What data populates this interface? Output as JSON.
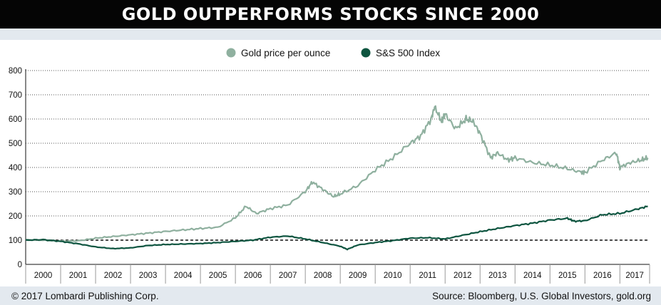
{
  "title": "GOLD OUTPERFORMS STOCKS SINCE 2000",
  "footer": {
    "left": "© 2017 Lombardi Publishing Corp.",
    "right": "Source: Bloomberg, U.S. Global Investors, gold.org"
  },
  "colors": {
    "gold": "#8fb09f",
    "sp": "#0e5540",
    "baseline": "#111111",
    "grid": "#555555"
  },
  "chart_data": {
    "type": "line",
    "legend_position": "top-center",
    "grid": true,
    "reference_line": 100,
    "ylim": [
      0,
      800
    ],
    "xlim": [
      2000,
      2017.85
    ],
    "y_ticks": [
      "800",
      "700",
      "600",
      "500",
      "400",
      "300",
      "200",
      "100",
      "0"
    ],
    "x_tick_labels": [
      "2000",
      "2001",
      "2002",
      "2003",
      "2004",
      "2005",
      "2006",
      "2007",
      "2008",
      "2009",
      "2010",
      "2011",
      "2012",
      "2013",
      "2014",
      "2015",
      "2016",
      "2017"
    ],
    "series": [
      {
        "name": "Gold price per ounce",
        "x": [
          2000,
          2000.5,
          2001,
          2001.5,
          2002,
          2002.5,
          2003,
          2003.5,
          2004,
          2004.5,
          2005,
          2005.5,
          2006,
          2006.3,
          2006.6,
          2007,
          2007.5,
          2008,
          2008.2,
          2008.5,
          2008.8,
          2009,
          2009.5,
          2010,
          2010.5,
          2011,
          2011.3,
          2011.6,
          2011.7,
          2011.9,
          2012,
          2012.3,
          2012.6,
          2012.8,
          2013,
          2013.3,
          2013.5,
          2013.8,
          2014,
          2014.5,
          2015,
          2015.5,
          2015.9,
          2016,
          2016.5,
          2016.9,
          2017,
          2017.3,
          2017.6,
          2017.8
        ],
        "values": [
          101,
          100,
          96,
          97,
          108,
          115,
          122,
          129,
          136,
          142,
          148,
          153,
          192,
          240,
          210,
          230,
          245,
          300,
          340,
          310,
          280,
          290,
          325,
          390,
          440,
          500,
          530,
          600,
          650,
          590,
          620,
          560,
          600,
          590,
          540,
          440,
          460,
          430,
          440,
          420,
          410,
          395,
          380,
          380,
          430,
          460,
          400,
          420,
          430,
          440
        ]
      },
      {
        "name": "S&S 500 Index",
        "x": [
          2000,
          2000.5,
          2001,
          2001.5,
          2002,
          2002.5,
          2003,
          2003.5,
          2004,
          2004.5,
          2005,
          2005.5,
          2006,
          2006.5,
          2007,
          2007.5,
          2008,
          2008.5,
          2009,
          2009.2,
          2009.5,
          2010,
          2010.5,
          2011,
          2011.5,
          2012,
          2012.5,
          2013,
          2013.5,
          2014,
          2014.5,
          2015,
          2015.5,
          2015.7,
          2016,
          2016.5,
          2017,
          2017.5,
          2017.8
        ],
        "values": [
          100,
          102,
          95,
          85,
          72,
          65,
          68,
          78,
          82,
          84,
          86,
          90,
          95,
          100,
          112,
          117,
          105,
          90,
          75,
          62,
          80,
          90,
          98,
          108,
          110,
          105,
          120,
          135,
          148,
          160,
          170,
          183,
          190,
          178,
          180,
          205,
          210,
          228,
          240
        ]
      }
    ]
  }
}
